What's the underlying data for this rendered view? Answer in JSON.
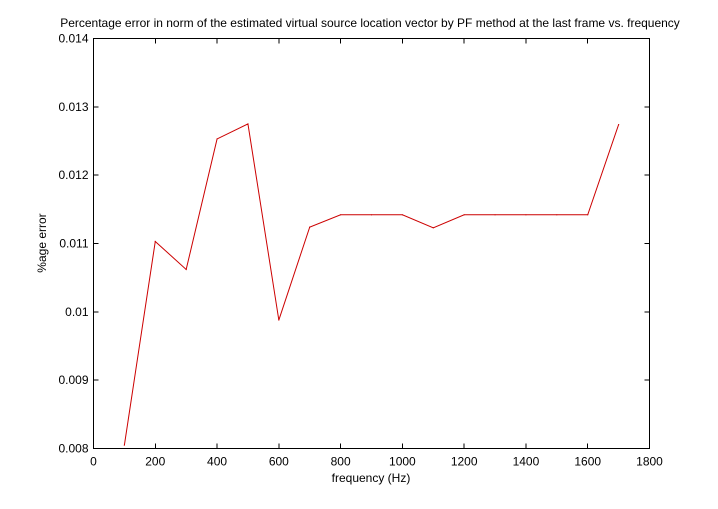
{
  "chart_data": {
    "type": "line",
    "title": "Percentage error in norm of the estimated virtual source location vector by PF method at the last frame vs. frequency",
    "xlabel": "frequency (Hz)",
    "ylabel": "%age error",
    "xlim": [
      0,
      1800
    ],
    "ylim": [
      0.008,
      0.014
    ],
    "xticks": [
      0,
      200,
      400,
      600,
      800,
      1000,
      1200,
      1400,
      1600,
      1800
    ],
    "xtick_labels": [
      "0",
      "200",
      "400",
      "600",
      "800",
      "1000",
      "1200",
      "1400",
      "1600",
      "1800"
    ],
    "yticks": [
      0.008,
      0.009,
      0.01,
      0.011,
      0.012,
      0.013,
      0.014
    ],
    "ytick_labels": [
      "0.008",
      "0.009",
      "0.01",
      "0.011",
      "0.012",
      "0.013",
      "0.014"
    ],
    "grid": false,
    "line_color": "#cc0000",
    "series": [
      {
        "x": [
          100,
          200,
          300,
          400,
          500,
          600,
          700,
          800,
          900,
          1000,
          1100,
          1200,
          1300,
          1400,
          1500,
          1600,
          1700
        ],
        "y": [
          0.00805,
          0.01103,
          0.01062,
          0.01253,
          0.01275,
          0.00988,
          0.01124,
          0.01142,
          0.01142,
          0.01142,
          0.01123,
          0.01142,
          0.01142,
          0.01142,
          0.01142,
          0.01142,
          0.01274
        ]
      }
    ]
  }
}
